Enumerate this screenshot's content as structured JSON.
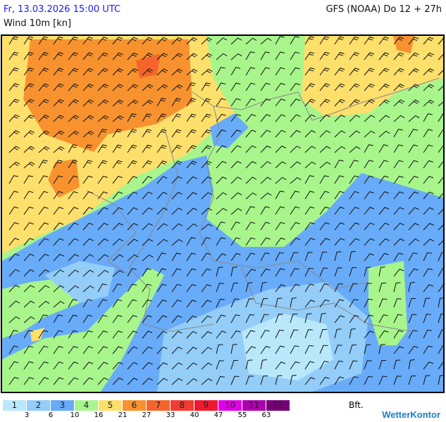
{
  "header": {
    "date": "Fr, 13.03.2026 15:00 UTC",
    "model": "GFS (NOAA) Do 12 + 27h",
    "parameter": "Wind 10m [kn]"
  },
  "legend": {
    "unit": "Bft.",
    "classes": [
      {
        "label": "1",
        "color": "#b9e8fb"
      },
      {
        "label": "2",
        "color": "#93cdf8"
      },
      {
        "label": "3",
        "color": "#68abf9"
      },
      {
        "label": "4",
        "color": "#a8f58c"
      },
      {
        "label": "5",
        "color": "#fddf6c"
      },
      {
        "label": "6",
        "color": "#f7922f"
      },
      {
        "label": "7",
        "color": "#f5652b"
      },
      {
        "label": "8",
        "color": "#f23c33"
      },
      {
        "label": "9",
        "color": "#ee1a30"
      },
      {
        "label": "10",
        "color": "#e100e6"
      },
      {
        "label": "11",
        "color": "#ac00ad"
      },
      {
        "label": "12",
        "color": "#760077"
      }
    ],
    "thresholds": [
      "3",
      "6",
      "10",
      "16",
      "21",
      "27",
      "33",
      "40",
      "47",
      "55",
      "63"
    ]
  },
  "brand": {
    "logo": "WetterKontor"
  }
}
